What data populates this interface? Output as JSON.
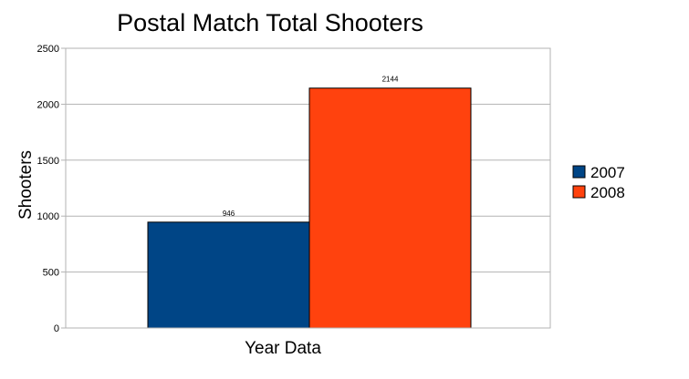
{
  "chart_data": {
    "type": "bar",
    "title": "Postal Match Total Shooters",
    "xlabel": "",
    "ylabel": "Shooters",
    "categories": [
      "Year Data"
    ],
    "series": [
      {
        "name": "2007",
        "values": [
          946
        ],
        "color": "#004586"
      },
      {
        "name": "2008",
        "values": [
          2144
        ],
        "color": "#ff420e"
      }
    ],
    "ylim": [
      0,
      2500
    ],
    "yticks": [
      0,
      500,
      1000,
      1500,
      2000,
      2500
    ],
    "grid": true,
    "legend": "right",
    "data_labels": [
      "946",
      "2144"
    ],
    "plot_background": "#ffffff",
    "grid_color": "#b3b3b3"
  }
}
